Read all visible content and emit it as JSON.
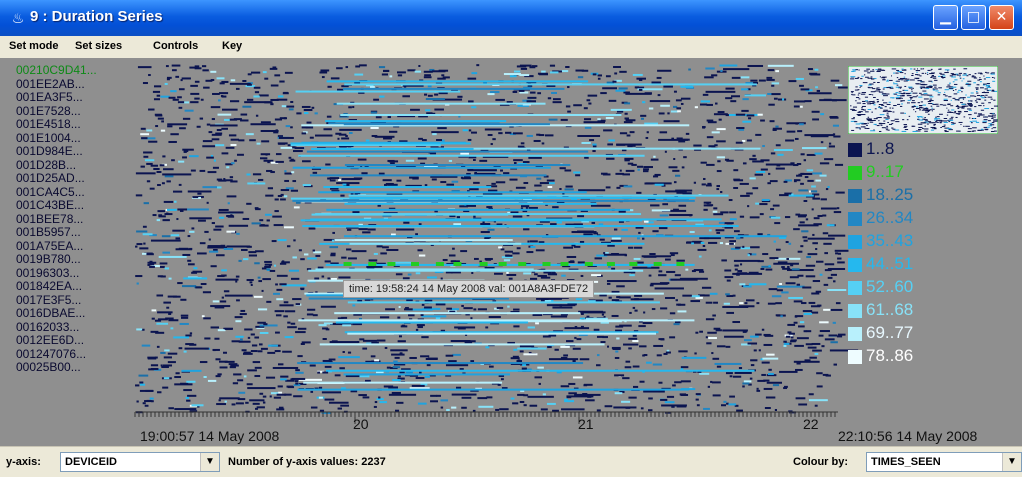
{
  "window": {
    "title": "9 : Duration Series",
    "icon": "java-cup-icon"
  },
  "menu": {
    "items": [
      "Set mode",
      "Set sizes",
      "Controls",
      "Key"
    ]
  },
  "y_axis_labels": [
    "00210C9D41...",
    "001EE2AB...",
    "001EA3F5...",
    "001E7528...",
    "001E4518...",
    "001E1004...",
    "001D984E...",
    "001D28B...",
    "001D25AD...",
    "001CA4C5...",
    "001C43BE...",
    "001BEE78...",
    "001B5957...",
    "001A75EA...",
    "0019B780...",
    "00196303...",
    "001842EA...",
    "0017E3F5...",
    "0016DBAE...",
    "00162033...",
    "0012EE6D...",
    "001247076...",
    "00025B00..."
  ],
  "time_axis": {
    "start": "19:00:57 14 May 2008",
    "end": "22:10:56 14 May 2008",
    "hour_ticks": [
      "20",
      "21",
      "22"
    ]
  },
  "tooltip": "time: 19:58:24 14 May 2008  val: 001A8A3FDE72",
  "legend": [
    {
      "label": "1..8",
      "color": "#0b1450",
      "text_color": "#0b1450"
    },
    {
      "label": "9..17",
      "color": "#22cc22",
      "text_color": "#22cc22"
    },
    {
      "label": "18..25",
      "color": "#1a6fa8",
      "text_color": "#1a6fa8"
    },
    {
      "label": "26..34",
      "color": "#2287c4",
      "text_color": "#2287c4"
    },
    {
      "label": "35..43",
      "color": "#1fa3e0",
      "text_color": "#1fa3e0"
    },
    {
      "label": "44..51",
      "color": "#25b8ee",
      "text_color": "#25b8ee"
    },
    {
      "label": "52..60",
      "color": "#55d0f4",
      "text_color": "#55d0f4"
    },
    {
      "label": "61..68",
      "color": "#88e2f8",
      "text_color": "#88e2f8"
    },
    {
      "label": "69..77",
      "color": "#b8f0fc",
      "text_color": "#e8f8ff"
    },
    {
      "label": "78..86",
      "color": "#eefcff",
      "text_color": "#ffffff"
    }
  ],
  "status": {
    "y_axis_label": "y-axis:",
    "y_axis_value": "DEVICEID",
    "count_text": "Number of y-axis values: 2237",
    "colour_label": "Colour by:",
    "colour_value": "TIMES_SEEN"
  },
  "colors": {
    "plot_bg": "#8f8f8f",
    "titlebar": "#0a5de0"
  }
}
